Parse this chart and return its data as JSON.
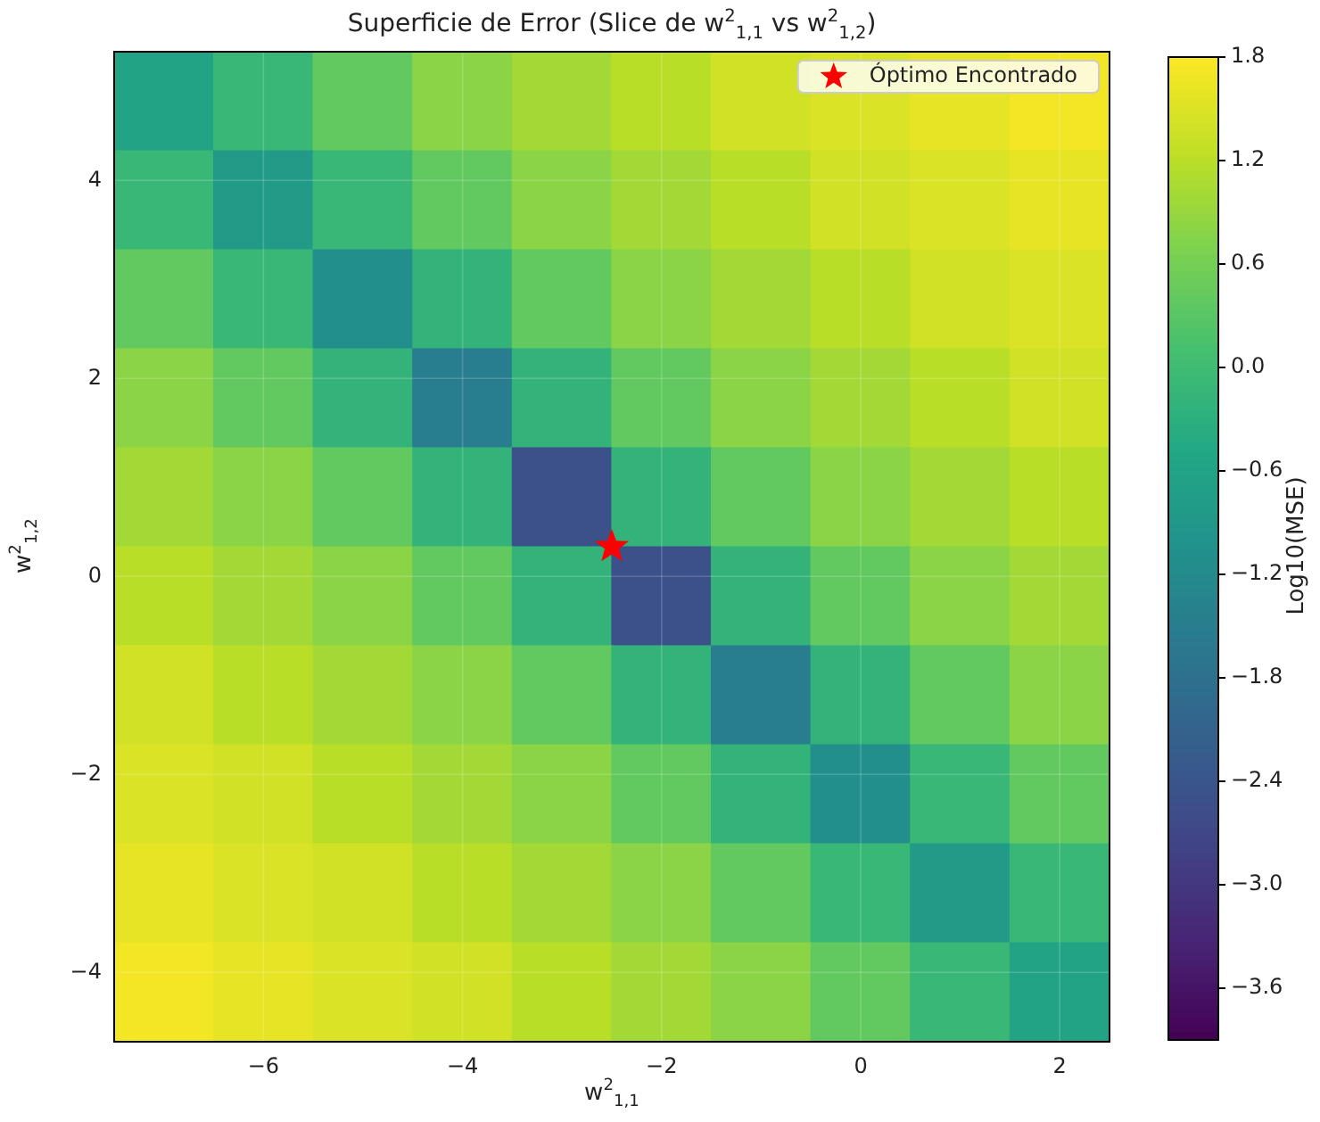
{
  "chart_data": {
    "type": "heatmap",
    "title": "Superficie de Error (Slice de w$^{2}$$_{1,1}$ vs w$^{2}$$_{1,2}$)",
    "xlabel": "w$^{2}$$_{1,1}$",
    "ylabel": "w$^{2}$$_{1,2}$",
    "clabel": "Log10(MSE)",
    "x": [
      -7,
      -6,
      -5,
      -4,
      -3,
      -2,
      -1,
      0,
      1,
      2
    ],
    "y": [
      4.8,
      3.8,
      2.8,
      1.8,
      0.8,
      -0.2,
      -1.2,
      -2.2,
      -3.2,
      -4.2
    ],
    "xlim": [
      -7.5,
      2.5
    ],
    "xticks": [
      {
        "value": -6,
        "label": "−6"
      },
      {
        "value": -4,
        "label": "−4"
      },
      {
        "value": -2,
        "label": "−2"
      },
      0,
      2
    ],
    "ylim": [
      -4.7,
      5.3
    ],
    "yticks": [
      {
        "value": -4,
        "label": "−4"
      },
      {
        "value": -2,
        "label": "−2"
      },
      0,
      2,
      4
    ],
    "clim": [
      -3.9,
      1.8
    ],
    "cticks": [
      {
        "value": 1.8,
        "label": "1.8"
      },
      {
        "value": 1.2,
        "label": "1.2"
      },
      {
        "value": 0.6,
        "label": "0.6"
      },
      {
        "value": 0,
        "label": "0.0"
      },
      {
        "value": -0.6,
        "label": "−0.6"
      },
      {
        "value": -1.2,
        "label": "−1.2"
      },
      {
        "value": -1.8,
        "label": "−1.8"
      },
      {
        "value": -2.4,
        "label": "−2.4"
      },
      {
        "value": -3.0,
        "label": "−3.0"
      },
      {
        "value": -3.6,
        "label": "−3.6"
      }
    ],
    "cells": [
      [
        -0.6,
        -0.1,
        0.4,
        0.8,
        1.0,
        1.2,
        1.4,
        1.5,
        1.6,
        1.7
      ],
      [
        -0.1,
        -0.8,
        -0.1,
        0.4,
        0.8,
        1.0,
        1.2,
        1.4,
        1.5,
        1.6
      ],
      [
        0.4,
        -0.1,
        -1.1,
        -0.2,
        0.4,
        0.8,
        1.0,
        1.2,
        1.4,
        1.5
      ],
      [
        0.8,
        0.4,
        -0.2,
        -1.5,
        -0.2,
        0.4,
        0.8,
        1.0,
        1.2,
        1.4
      ],
      [
        1.0,
        0.8,
        0.4,
        -0.2,
        -2.5,
        -0.2,
        0.4,
        0.8,
        1.0,
        1.2
      ],
      [
        1.2,
        1.0,
        0.8,
        0.4,
        -0.2,
        -2.5,
        -0.2,
        0.4,
        0.8,
        1.0
      ],
      [
        1.4,
        1.2,
        1.0,
        0.8,
        0.4,
        -0.2,
        -1.5,
        -0.2,
        0.4,
        0.8
      ],
      [
        1.5,
        1.4,
        1.2,
        1.0,
        0.8,
        0.4,
        -0.2,
        -1.1,
        -0.1,
        0.4
      ],
      [
        1.6,
        1.5,
        1.4,
        1.2,
        1.0,
        0.8,
        0.4,
        -0.1,
        -0.8,
        -0.1
      ],
      [
        1.7,
        1.6,
        1.5,
        1.4,
        1.2,
        1.0,
        0.8,
        0.4,
        -0.1,
        -0.6
      ]
    ],
    "series": [
      {
        "name": "Óptimo Encontrado",
        "type": "scatter",
        "color": "#ff0000",
        "x": [
          -2.5
        ],
        "values": [
          0.3
        ],
        "marker": "star"
      }
    ],
    "grid": true,
    "legend": "top right"
  }
}
